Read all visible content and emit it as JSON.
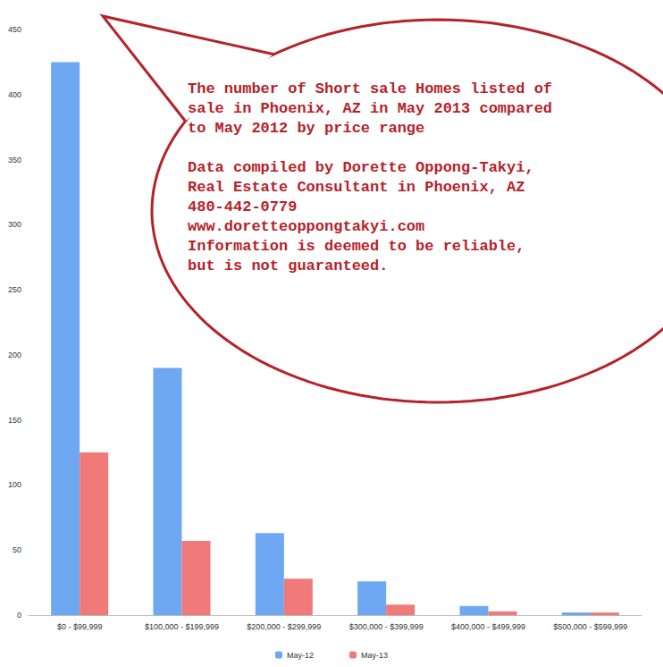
{
  "chart_data": {
    "type": "bar",
    "categories": [
      "$0 - $99,999",
      "$100,000 - $199,999",
      "$200,000 - $299,999",
      "$300,000 - $399,999",
      "$400,000 - $499,999",
      "$500,000 - $599,999"
    ],
    "series": [
      {
        "name": "May-12",
        "color": "#6ea8f2",
        "values": [
          425,
          190,
          63,
          26,
          7,
          2
        ]
      },
      {
        "name": "May-13",
        "color": "#f07a7a",
        "values": [
          125,
          57,
          28,
          8,
          3,
          2
        ]
      }
    ],
    "ylim": [
      0,
      450
    ],
    "yticks": [
      0,
      50,
      100,
      150,
      200,
      250,
      300,
      350,
      400,
      450
    ],
    "grid": false,
    "legend": "bottom",
    "annotations": [
      [
        "The number of Short sale Homes listed of",
        "sale in Phoenix, AZ in May 2013 compared",
        "to May 2012 by price range"
      ],
      [
        "Data compiled by Dorette Oppong-Takyi,",
        "Real Estate Consultant in Phoenix, AZ",
        "480-442-0779",
        "www.doretteoppongtakyi.com",
        "Information is deemed to be reliable,",
        "but is not guaranteed."
      ]
    ]
  }
}
